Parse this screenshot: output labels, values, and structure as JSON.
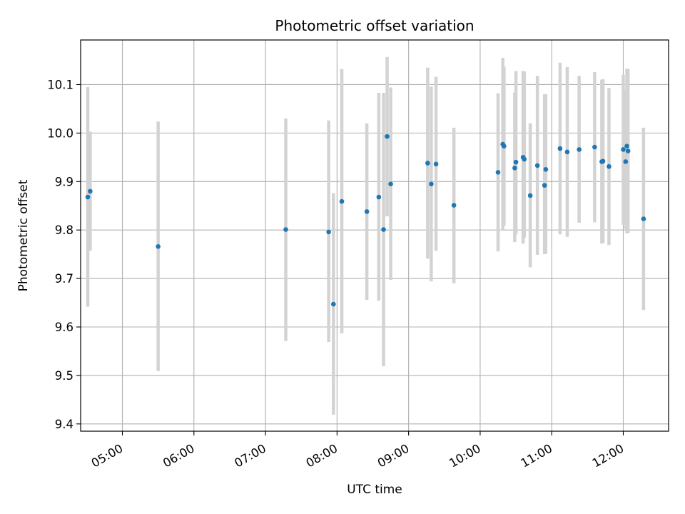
{
  "chart_data": {
    "type": "scatter",
    "title": "Photometric offset variation",
    "xlabel": "UTC time",
    "ylabel": "Photometric offset",
    "x_unit": "UTC hours",
    "xlim": [
      "04:25",
      "12:38"
    ],
    "ylim": [
      9.385,
      10.192
    ],
    "x_ticks": [
      "05:00",
      "06:00",
      "07:00",
      "08:00",
      "09:00",
      "10:00",
      "11:00",
      "12:00"
    ],
    "y_ticks": [
      "9.4",
      "9.5",
      "9.6",
      "9.7",
      "9.8",
      "9.9",
      "10.0",
      "10.1"
    ],
    "grid": true,
    "legend": "none",
    "marker_color": "#1f77b4",
    "errorbar_color": "#d3d3d3",
    "points": [
      {
        "x": "04:31",
        "y": 9.868,
        "ylow": 9.642,
        "yhigh": 10.095
      },
      {
        "x": "04:33",
        "y": 9.88,
        "ylow": 9.757,
        "yhigh": 10.003
      },
      {
        "x": "05:30",
        "y": 9.766,
        "ylow": 9.509,
        "yhigh": 10.024
      },
      {
        "x": "07:17",
        "y": 9.801,
        "ylow": 9.571,
        "yhigh": 10.03
      },
      {
        "x": "07:53",
        "y": 9.796,
        "ylow": 9.569,
        "yhigh": 10.026
      },
      {
        "x": "07:57",
        "y": 9.647,
        "ylow": 9.419,
        "yhigh": 9.876
      },
      {
        "x": "08:04",
        "y": 9.859,
        "ylow": 9.587,
        "yhigh": 10.132
      },
      {
        "x": "08:25",
        "y": 9.838,
        "ylow": 9.656,
        "yhigh": 10.02
      },
      {
        "x": "08:35",
        "y": 9.868,
        "ylow": 9.654,
        "yhigh": 10.083
      },
      {
        "x": "08:39",
        "y": 9.801,
        "ylow": 9.519,
        "yhigh": 10.083
      },
      {
        "x": "08:42",
        "y": 9.993,
        "ylow": 9.828,
        "yhigh": 10.157
      },
      {
        "x": "08:45",
        "y": 9.895,
        "ylow": 9.697,
        "yhigh": 10.094
      },
      {
        "x": "09:16",
        "y": 9.938,
        "ylow": 9.741,
        "yhigh": 10.135
      },
      {
        "x": "09:19",
        "y": 9.895,
        "ylow": 9.694,
        "yhigh": 10.096
      },
      {
        "x": "09:23",
        "y": 9.936,
        "ylow": 9.757,
        "yhigh": 10.116
      },
      {
        "x": "09:38",
        "y": 9.851,
        "ylow": 9.69,
        "yhigh": 10.011
      },
      {
        "x": "10:15",
        "y": 9.919,
        "ylow": 9.756,
        "yhigh": 10.082
      },
      {
        "x": "10:19",
        "y": 9.977,
        "ylow": 9.8,
        "yhigh": 10.155
      },
      {
        "x": "10:20",
        "y": 9.973,
        "ylow": 9.809,
        "yhigh": 10.137
      },
      {
        "x": "10:29",
        "y": 9.928,
        "ylow": 9.775,
        "yhigh": 10.083
      },
      {
        "x": "10:30",
        "y": 9.94,
        "ylow": 9.791,
        "yhigh": 10.128
      },
      {
        "x": "10:36",
        "y": 9.95,
        "ylow": 9.772,
        "yhigh": 10.128
      },
      {
        "x": "10:37",
        "y": 9.946,
        "ylow": 9.784,
        "yhigh": 10.127
      },
      {
        "x": "10:42",
        "y": 9.871,
        "ylow": 9.723,
        "yhigh": 10.02
      },
      {
        "x": "10:48",
        "y": 9.933,
        "ylow": 9.749,
        "yhigh": 10.118
      },
      {
        "x": "10:54",
        "y": 9.892,
        "ylow": 9.75,
        "yhigh": 10.08
      },
      {
        "x": "10:55",
        "y": 9.925,
        "ylow": 9.751,
        "yhigh": 10.08
      },
      {
        "x": "11:07",
        "y": 9.968,
        "ylow": 9.791,
        "yhigh": 10.145
      },
      {
        "x": "11:13",
        "y": 9.961,
        "ylow": 9.786,
        "yhigh": 10.136
      },
      {
        "x": "11:23",
        "y": 9.966,
        "ylow": 9.815,
        "yhigh": 10.118
      },
      {
        "x": "11:36",
        "y": 9.971,
        "ylow": 9.816,
        "yhigh": 10.126
      },
      {
        "x": "11:42",
        "y": 9.941,
        "ylow": 9.772,
        "yhigh": 10.11
      },
      {
        "x": "11:43",
        "y": 9.942,
        "ylow": 9.773,
        "yhigh": 10.111
      },
      {
        "x": "11:48",
        "y": 9.931,
        "ylow": 9.769,
        "yhigh": 10.093
      },
      {
        "x": "12:00",
        "y": 9.966,
        "ylow": 9.811,
        "yhigh": 10.12
      },
      {
        "x": "12:02",
        "y": 9.941,
        "ylow": 9.802,
        "yhigh": 10.09
      },
      {
        "x": "12:03",
        "y": 9.973,
        "ylow": 9.793,
        "yhigh": 10.133
      },
      {
        "x": "12:04",
        "y": 9.963,
        "ylow": 9.794,
        "yhigh": 10.132
      },
      {
        "x": "12:17",
        "y": 9.823,
        "ylow": 9.635,
        "yhigh": 10.011
      }
    ]
  }
}
